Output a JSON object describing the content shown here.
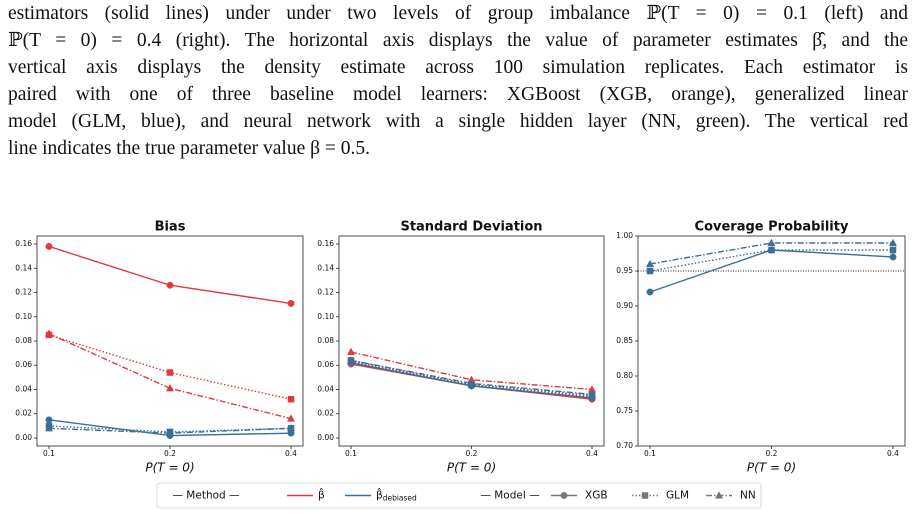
{
  "text_lines": [
    "estimators (solid lines) under under two levels of group imbalance ℙ(T = 0) = 0.1 (left) and",
    "ℙ(T = 0) = 0.4 (right). The horizontal axis displays the value of parameter estimates β̂, and the",
    "vertical axis displays the density estimate across 100 simulation replicates. Each estimator is",
    "paired with one of three baseline model learners: XGBoost (XGB, orange), generalized linear",
    "model (GLM, blue), and neural network with a single hidden layer (NN, green). The vertical red",
    "line indicates the true parameter value β = 0.5."
  ],
  "chart_data": [
    {
      "type": "line",
      "title": "Bias",
      "xlabel": "P(T = 0)",
      "categories": [
        "0.1",
        "0.2",
        "0.4"
      ],
      "ylim": [
        -0.0066,
        0.1666
      ],
      "yticks": [
        {
          "value": 0,
          "label": "0.00"
        },
        {
          "value": 0.02,
          "label": "0.02"
        },
        {
          "value": 0.04,
          "label": "0.04"
        },
        {
          "value": 0.06,
          "label": "0.06"
        },
        {
          "value": 0.08,
          "label": "0.08"
        },
        {
          "value": 0.1,
          "label": "0.10"
        },
        {
          "value": 0.12,
          "label": "0.12"
        },
        {
          "value": 0.14,
          "label": "0.14"
        },
        {
          "value": 0.16,
          "label": "0.16"
        }
      ],
      "series": [
        {
          "color": "#e0393e",
          "linestyle": "solid",
          "marker": "circle",
          "values": [
            0.158,
            0.126,
            0.111
          ]
        },
        {
          "color": "#e0393e",
          "linestyle": "dotted",
          "marker": "square",
          "values": [
            0.085,
            0.054,
            0.032
          ]
        },
        {
          "color": "#e0393e",
          "linestyle": "dashdot",
          "marker": "triangle",
          "values": [
            0.086,
            0.041,
            0.016
          ]
        },
        {
          "color": "#3a6f96",
          "linestyle": "solid",
          "marker": "circle",
          "values": [
            0.015,
            0.002,
            0.004
          ]
        },
        {
          "color": "#3a6f96",
          "linestyle": "dotted",
          "marker": "square",
          "values": [
            0.01,
            0.005,
            0.008
          ]
        },
        {
          "color": "#3a6f96",
          "linestyle": "dashdot",
          "marker": "triangle",
          "values": [
            0.008,
            0.004,
            0.008
          ]
        }
      ]
    },
    {
      "type": "line",
      "title": "Standard Deviation",
      "xlabel": "P(T = 0)",
      "categories": [
        "0.1",
        "0.2",
        "0.4"
      ],
      "ylim": [
        -0.0066,
        0.1666
      ],
      "yticks": [
        {
          "value": 0,
          "label": "0.00"
        },
        {
          "value": 0.02,
          "label": "0.02"
        },
        {
          "value": 0.04,
          "label": "0.04"
        },
        {
          "value": 0.06,
          "label": "0.06"
        },
        {
          "value": 0.08,
          "label": "0.08"
        },
        {
          "value": 0.1,
          "label": "0.10"
        },
        {
          "value": 0.12,
          "label": "0.12"
        },
        {
          "value": 0.14,
          "label": "0.14"
        },
        {
          "value": 0.16,
          "label": "0.16"
        }
      ],
      "series": [
        {
          "color": "#e0393e",
          "linestyle": "solid",
          "marker": "circle",
          "values": [
            0.061,
            0.043,
            0.032
          ]
        },
        {
          "color": "#e0393e",
          "linestyle": "dotted",
          "marker": "square",
          "values": [
            0.064,
            0.044,
            0.034
          ]
        },
        {
          "color": "#e0393e",
          "linestyle": "dashdot",
          "marker": "triangle",
          "values": [
            0.071,
            0.048,
            0.04
          ]
        },
        {
          "color": "#3a6f96",
          "linestyle": "solid",
          "marker": "circle",
          "values": [
            0.062,
            0.043,
            0.033
          ]
        },
        {
          "color": "#3a6f96",
          "linestyle": "dotted",
          "marker": "square",
          "values": [
            0.063,
            0.044,
            0.035
          ]
        },
        {
          "color": "#3a6f96",
          "linestyle": "dashdot",
          "marker": "triangle",
          "values": [
            0.064,
            0.045,
            0.036
          ]
        }
      ]
    },
    {
      "type": "line",
      "title": "Coverage Probability",
      "xlabel": "P(T = 0)",
      "categories": [
        "0.1",
        "0.2",
        "0.4"
      ],
      "ylim": [
        0.7,
        1.0
      ],
      "yticks": [
        {
          "value": 0.7,
          "label": "0.70"
        },
        {
          "value": 0.75,
          "label": "0.75"
        },
        {
          "value": 0.8,
          "label": "0.80"
        },
        {
          "value": 0.85,
          "label": "0.85"
        },
        {
          "value": 0.9,
          "label": "0.90"
        },
        {
          "value": 0.95,
          "label": "0.95"
        },
        {
          "value": 1.0,
          "label": "1.00"
        }
      ],
      "hline": 0.95,
      "series": [
        {
          "color": "#3a6f96",
          "linestyle": "solid",
          "marker": "circle",
          "values": [
            0.92,
            0.98,
            0.97
          ]
        },
        {
          "color": "#3a6f96",
          "linestyle": "dotted",
          "marker": "square",
          "values": [
            0.95,
            0.98,
            0.98
          ]
        },
        {
          "color": "#3a6f96",
          "linestyle": "dashdot",
          "marker": "triangle",
          "values": [
            0.96,
            0.99,
            0.99
          ]
        }
      ]
    }
  ],
  "legend": [
    {
      "label": "— Method —"
    },
    {
      "label": "β̂",
      "color": "#e0393e",
      "linestyle": "solid"
    },
    {
      "label": "β̂",
      "subscript": "debiased",
      "color": "#3a6f96",
      "linestyle": "solid"
    },
    {
      "label": "— Model —"
    },
    {
      "label": "XGB",
      "color": "#777777",
      "linestyle": "solid",
      "marker": "circle"
    },
    {
      "label": "GLM",
      "color": "#777777",
      "linestyle": "dotted",
      "marker": "square"
    },
    {
      "label": "NN",
      "color": "#777777",
      "linestyle": "dashdot",
      "marker": "triangle"
    }
  ]
}
